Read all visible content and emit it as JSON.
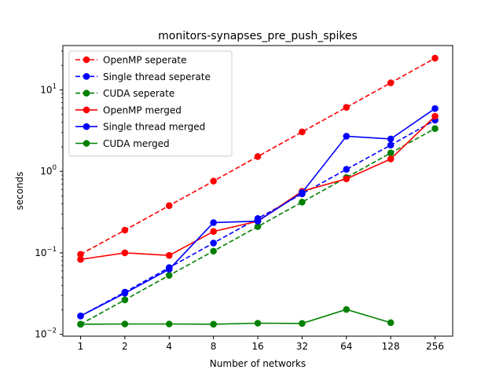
{
  "chart_data": {
    "type": "line",
    "title": "monitors-synapses_pre_push_spikes",
    "xlabel": "Number of networks",
    "ylabel": "seconds",
    "x_scale": "log2",
    "y_scale": "log",
    "x": [
      1,
      2,
      4,
      8,
      16,
      32,
      64,
      128,
      256
    ],
    "x_tick_labels": [
      "1",
      "2",
      "4",
      "8",
      "16",
      "32",
      "64",
      "128",
      "256"
    ],
    "ylim": [
      0.0095,
      35
    ],
    "y_ticks": [
      {
        "value": 0.01,
        "base": "10",
        "exp": "−2"
      },
      {
        "value": 0.1,
        "base": "10",
        "exp": "−1"
      },
      {
        "value": 1,
        "base": "10",
        "exp": "0"
      },
      {
        "value": 10,
        "base": "10",
        "exp": "1"
      }
    ],
    "grid": false,
    "legend_position": "upper-left",
    "series": [
      {
        "name": "OpenMP seperate",
        "color": "#ff0000",
        "dashed": true,
        "values": [
          0.096,
          0.19,
          0.38,
          0.76,
          1.52,
          3.05,
          6.1,
          12.2,
          24.5
        ]
      },
      {
        "name": "Single thread seperate",
        "color": "#0000ff",
        "dashed": true,
        "values": [
          0.0168,
          0.033,
          0.066,
          0.132,
          0.264,
          0.53,
          1.06,
          2.1,
          4.25
        ]
      },
      {
        "name": "CUDA seperate",
        "color": "#008000",
        "dashed": true,
        "values": [
          0.0133,
          0.0265,
          0.053,
          0.105,
          0.21,
          0.42,
          0.84,
          1.68,
          3.35
        ]
      },
      {
        "name": "OpenMP merged",
        "color": "#ff0000",
        "dashed": false,
        "values": [
          0.083,
          0.1,
          0.093,
          0.183,
          0.245,
          0.57,
          0.81,
          1.42,
          4.75
        ]
      },
      {
        "name": "Single thread merged",
        "color": "#0000ff",
        "dashed": false,
        "values": [
          0.0168,
          0.032,
          0.063,
          0.235,
          0.245,
          0.55,
          2.7,
          2.5,
          5.9
        ]
      },
      {
        "name": "CUDA merged",
        "color": "#008000",
        "dashed": false,
        "values": [
          0.0133,
          0.0134,
          0.0134,
          0.0133,
          0.0137,
          0.0136,
          0.0202,
          0.0139,
          null
        ]
      }
    ]
  }
}
